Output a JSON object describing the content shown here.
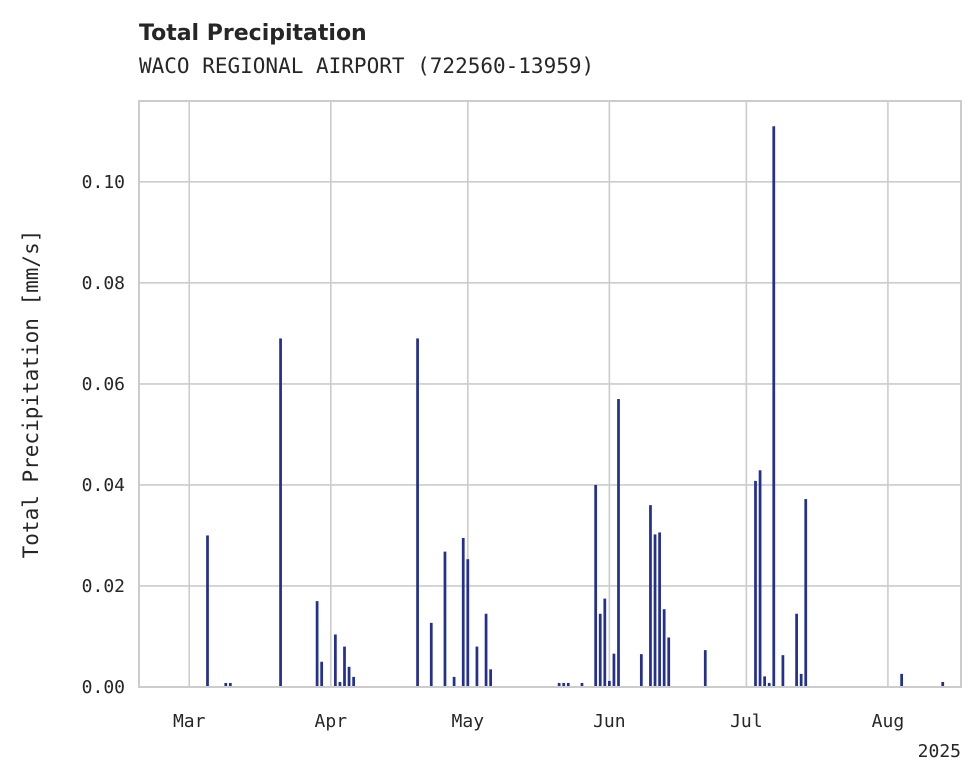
{
  "chart_data": {
    "type": "bar",
    "title": "Total Precipitation",
    "subtitle": "WACO REGIONAL AIRPORT (722560-13959)",
    "xlabel": "",
    "ylabel": "Total Precipitation [mm/s]",
    "x_tick_labels": [
      "Mar",
      "Apr",
      "May",
      "Jun",
      "Jul",
      "Aug"
    ],
    "x_ticks": [
      "2025-03-01",
      "2025-04-01",
      "2025-05-01",
      "2025-06-01",
      "2025-07-01",
      "2025-08-01"
    ],
    "x_offset_label": "2025",
    "xlim": [
      "2025-02-18",
      "2025-08-17"
    ],
    "y_ticks": [
      0.0,
      0.02,
      0.04,
      0.06,
      0.08,
      0.1
    ],
    "y_tick_labels": [
      "0.00",
      "0.02",
      "0.04",
      "0.06",
      "0.08",
      "0.10"
    ],
    "ylim": [
      0,
      0.116
    ],
    "grid": true,
    "bar_color": "#233090",
    "x": [
      "2025-03-05",
      "2025-03-09",
      "2025-03-10",
      "2025-03-21",
      "2025-03-29",
      "2025-03-30",
      "2025-04-02",
      "2025-04-03",
      "2025-04-04",
      "2025-04-05",
      "2025-04-06",
      "2025-04-20",
      "2025-04-23",
      "2025-04-26",
      "2025-04-28",
      "2025-04-30",
      "2025-05-01",
      "2025-05-03",
      "2025-05-05",
      "2025-05-06",
      "2025-05-21",
      "2025-05-22",
      "2025-05-23",
      "2025-05-26",
      "2025-05-29",
      "2025-05-30",
      "2025-05-31",
      "2025-06-01",
      "2025-06-02",
      "2025-06-03",
      "2025-06-08",
      "2025-06-10",
      "2025-06-11",
      "2025-06-12",
      "2025-06-13",
      "2025-06-14",
      "2025-06-22",
      "2025-07-03",
      "2025-07-04",
      "2025-07-05",
      "2025-07-06",
      "2025-07-07",
      "2025-07-09",
      "2025-07-12",
      "2025-07-13",
      "2025-07-14",
      "2025-08-04",
      "2025-08-13"
    ],
    "values": [
      0.03,
      0.0008,
      0.0008,
      0.069,
      0.017,
      0.005,
      0.0104,
      0.001,
      0.008,
      0.004,
      0.002,
      0.069,
      0.0127,
      0.0268,
      0.002,
      0.0295,
      0.0253,
      0.008,
      0.0145,
      0.0035,
      0.0008,
      0.0008,
      0.0008,
      0.0008,
      0.04,
      0.0145,
      0.0175,
      0.0012,
      0.0066,
      0.057,
      0.0065,
      0.036,
      0.0302,
      0.0306,
      0.0154,
      0.0098,
      0.0073,
      0.0408,
      0.0429,
      0.0021,
      0.0008,
      0.111,
      0.0063,
      0.0145,
      0.0026,
      0.0372,
      0.0026,
      0.001
    ]
  }
}
